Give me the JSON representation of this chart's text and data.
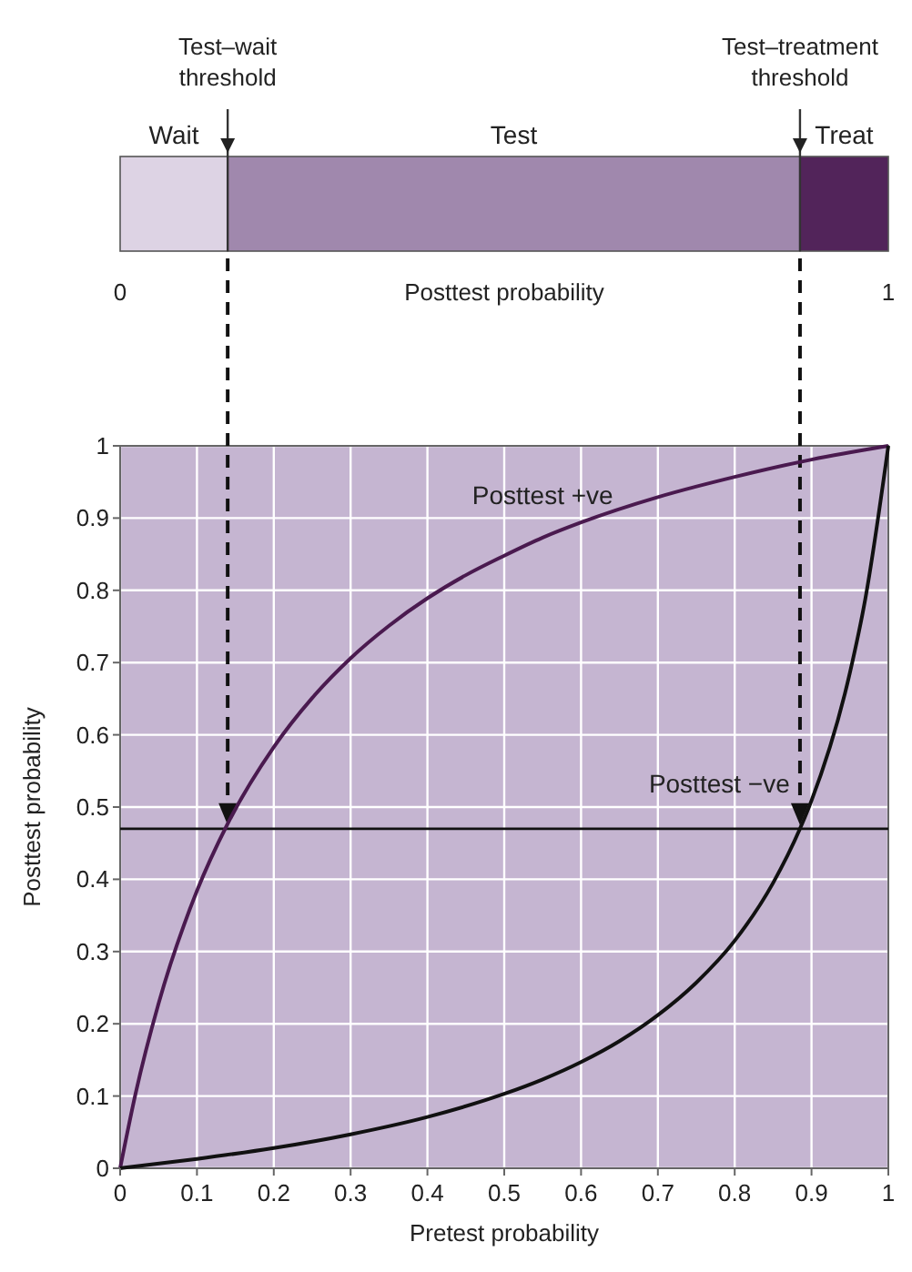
{
  "chart_data": [
    {
      "type": "bar",
      "orientation": "horizontal",
      "stacked": true,
      "categories": [
        null
      ],
      "xlabel": "Posttest probability",
      "xlim": [
        0,
        1
      ],
      "xticks": [
        0,
        1
      ],
      "series": [
        {
          "name": "Wait",
          "color": "#ddd3e4",
          "values": [
            0.14
          ]
        },
        {
          "name": "Test",
          "color": "#a088ad",
          "values": [
            0.745
          ]
        },
        {
          "name": "Treat",
          "color": "#52245a",
          "values": [
            0.115
          ]
        }
      ],
      "ref_lines": [
        {
          "axis": "x",
          "value": 0.14,
          "label": "Test–wait threshold"
        },
        {
          "axis": "x",
          "value": 0.885,
          "label": "Test–treatment threshold"
        }
      ]
    },
    {
      "type": "line",
      "xlabel": "Pretest probability",
      "ylabel": "Posttest probability",
      "xlim": [
        0,
        1
      ],
      "ylim": [
        0,
        1
      ],
      "xticks": [
        0,
        0.1,
        0.2,
        0.3,
        0.4,
        0.5,
        0.6,
        0.7,
        0.8,
        0.9,
        1
      ],
      "yticks": [
        0,
        0.1,
        0.2,
        0.3,
        0.4,
        0.5,
        0.6,
        0.7,
        0.8,
        0.9,
        1
      ],
      "grid": true,
      "legend": false,
      "marker": "none",
      "series": [
        {
          "name": "Posttest +ve",
          "color": "#4a1a4f",
          "x": [
            0,
            0.02,
            0.05,
            0.1,
            0.14,
            0.2,
            0.25,
            0.3,
            0.35,
            0.4,
            0.45,
            0.5,
            0.55,
            0.6,
            0.7,
            0.8,
            0.9,
            1
          ],
          "values": [
            0,
            0.103,
            0.228,
            0.384,
            0.477,
            0.583,
            0.651,
            0.706,
            0.751,
            0.789,
            0.821,
            0.848,
            0.873,
            0.894,
            0.929,
            0.957,
            0.981,
            1
          ]
        },
        {
          "name": "Posttest −ve",
          "color": "#111111",
          "x": [
            0,
            0.1,
            0.2,
            0.3,
            0.4,
            0.5,
            0.55,
            0.6,
            0.65,
            0.7,
            0.75,
            0.8,
            0.85,
            0.885,
            0.9,
            0.95,
            0.97,
            1
          ],
          "values": [
            0,
            0.013,
            0.028,
            0.047,
            0.071,
            0.103,
            0.123,
            0.147,
            0.176,
            0.212,
            0.257,
            0.315,
            0.395,
            0.47,
            0.509,
            0.686,
            0.788,
            1
          ]
        }
      ],
      "ref_lines": [
        {
          "axis": "x",
          "value": 0.14,
          "line_style": "dashed"
        },
        {
          "axis": "x",
          "value": 0.885,
          "line_style": "dashed"
        },
        {
          "axis": "y",
          "value": 0.47,
          "line_style": "solid"
        }
      ]
    }
  ]
}
